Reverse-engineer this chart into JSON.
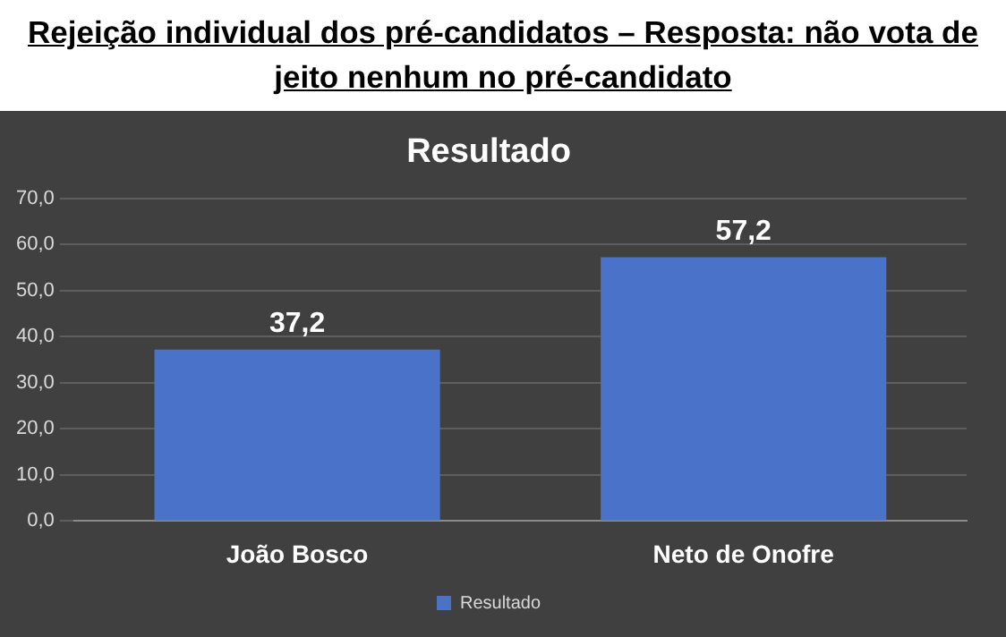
{
  "chart_data": {
    "type": "bar",
    "title": "Rejeição individual dos pré-candidatos – Resposta: não vota de jeito nenhum no pré-candidato",
    "subtitle": "Resultado",
    "categories": [
      "João Bosco",
      "Neto de Onofre"
    ],
    "series": [
      {
        "name": "Resultado",
        "color": "#4a72c8",
        "values": [
          37.2,
          57.2
        ],
        "value_labels": [
          "37,2",
          "57,2"
        ]
      }
    ],
    "ylim": [
      0,
      70
    ],
    "yticks": [
      {
        "value": 0,
        "label": "0,0"
      },
      {
        "value": 10,
        "label": "10,0"
      },
      {
        "value": 20,
        "label": "20,0"
      },
      {
        "value": 30,
        "label": "30,0"
      },
      {
        "value": 40,
        "label": "40,0"
      },
      {
        "value": 50,
        "label": "50,0"
      },
      {
        "value": 60,
        "label": "60,0"
      },
      {
        "value": 70,
        "label": "70,0"
      }
    ],
    "grid": "y",
    "legend": "bottom"
  }
}
